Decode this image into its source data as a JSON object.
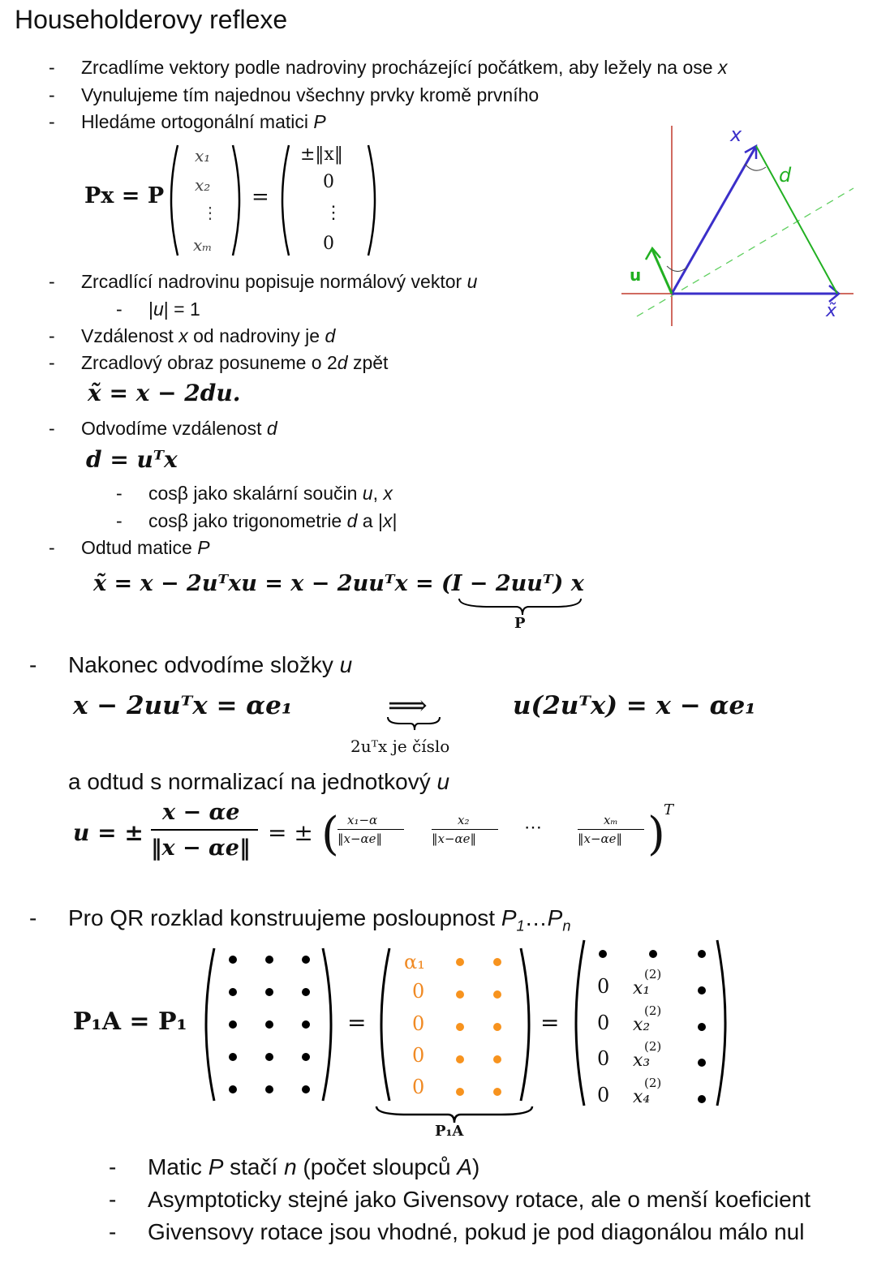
{
  "title": "Householderovy reflexe",
  "bullets": {
    "b1": [
      "Zrcadlíme vektory podle nadroviny procházející počátkem, aby ležely na ose ",
      "x"
    ],
    "b2": "Vynulujeme tím najednou všechny prvky kromě prvního",
    "b3": [
      "Hledáme ortogonální matici ",
      "P"
    ],
    "b4": [
      "Zrcadlící nadrovinu popisuje normálový vektor ",
      "u"
    ],
    "b4a": [
      "|",
      "u",
      "| = 1"
    ],
    "b5": [
      "Vzdálenost ",
      "x",
      " od nadroviny je ",
      "d"
    ],
    "b6": [
      "Zrcadlový obraz posuneme o 2",
      "d",
      " zpět"
    ],
    "b7": [
      "Odvodíme vzdálenost ",
      "d"
    ],
    "b7a": [
      "cosβ jako skalární součin ",
      "u",
      ", ",
      "x"
    ],
    "b7b": [
      "cosβ jako trigonometrie ",
      "d",
      " a |",
      "x",
      "|"
    ],
    "b8": [
      "Odtud matice ",
      "P"
    ],
    "b9": [
      "Nakonec odvodíme složky ",
      "u"
    ],
    "b9text": [
      "a odtud s normalizací na jednotkový ",
      "u"
    ],
    "b10": [
      "Pro QR rozklad konstruujeme posloupnost ",
      "P",
      "1",
      "…",
      "P",
      "n"
    ],
    "b10a": [
      "Matic ",
      "P",
      " stačí ",
      "n",
      " (počet sloupců ",
      "A",
      ")"
    ],
    "b10b": "Asymptoticky stejné jako Givensovy rotace, ale o menší koeficient",
    "b10c": "Givensovy rotace jsou vhodné, pokud je pod diagonálou málo nul"
  },
  "eq": {
    "px_lhs": "Px = P",
    "vec_x": [
      "x₁",
      "x₂",
      "⋮",
      "xₘ"
    ],
    "vec_r": [
      "±‖x‖",
      "0",
      "⋮",
      "0"
    ],
    "xtilde": "x̃ = x − 2du.",
    "d_eq": "d = uᵀx",
    "long": "x̃ = x − 2uᵀxu = x − 2uuᵀx = (I − 2uuᵀ) x",
    "brace_P": "P",
    "alpha_lhs": "x − 2uuᵀx = αe₁",
    "implies": "⟹",
    "implies_note": "2uᵀx je číslo",
    "alpha_rhs": "u(2uᵀx) = x − αe₁",
    "u_lhs": "u = ±",
    "u_num": "x − αe",
    "u_den": "‖x − αe‖",
    "u_eq2": "= ±",
    "u_comp": [
      [
        "x₁−α",
        "‖x−αe‖"
      ],
      [
        "x₂",
        "‖x−αe‖"
      ],
      [
        "xₘ",
        "‖x−αe‖"
      ]
    ],
    "u_dots": "⋯",
    "u_T": "T",
    "qr_lhs": "P₁A = P₁",
    "qr_alpha": "α₁",
    "qr_zero": "0",
    "qr_x": [
      "x₁",
      "x₂",
      "x₃",
      "x₄"
    ],
    "qr_sup": "(2)",
    "brace_P1A": "P₁A"
  },
  "diagram": {
    "label_x": "x",
    "label_d": "d",
    "label_u": "u",
    "label_xt": "x̃",
    "colors": {
      "axes": "#c0392b",
      "vector": "#3b2fc9",
      "green": "#22b022",
      "plane": "#5fcf5f"
    }
  },
  "colors": {
    "orange": "#f7931e"
  }
}
